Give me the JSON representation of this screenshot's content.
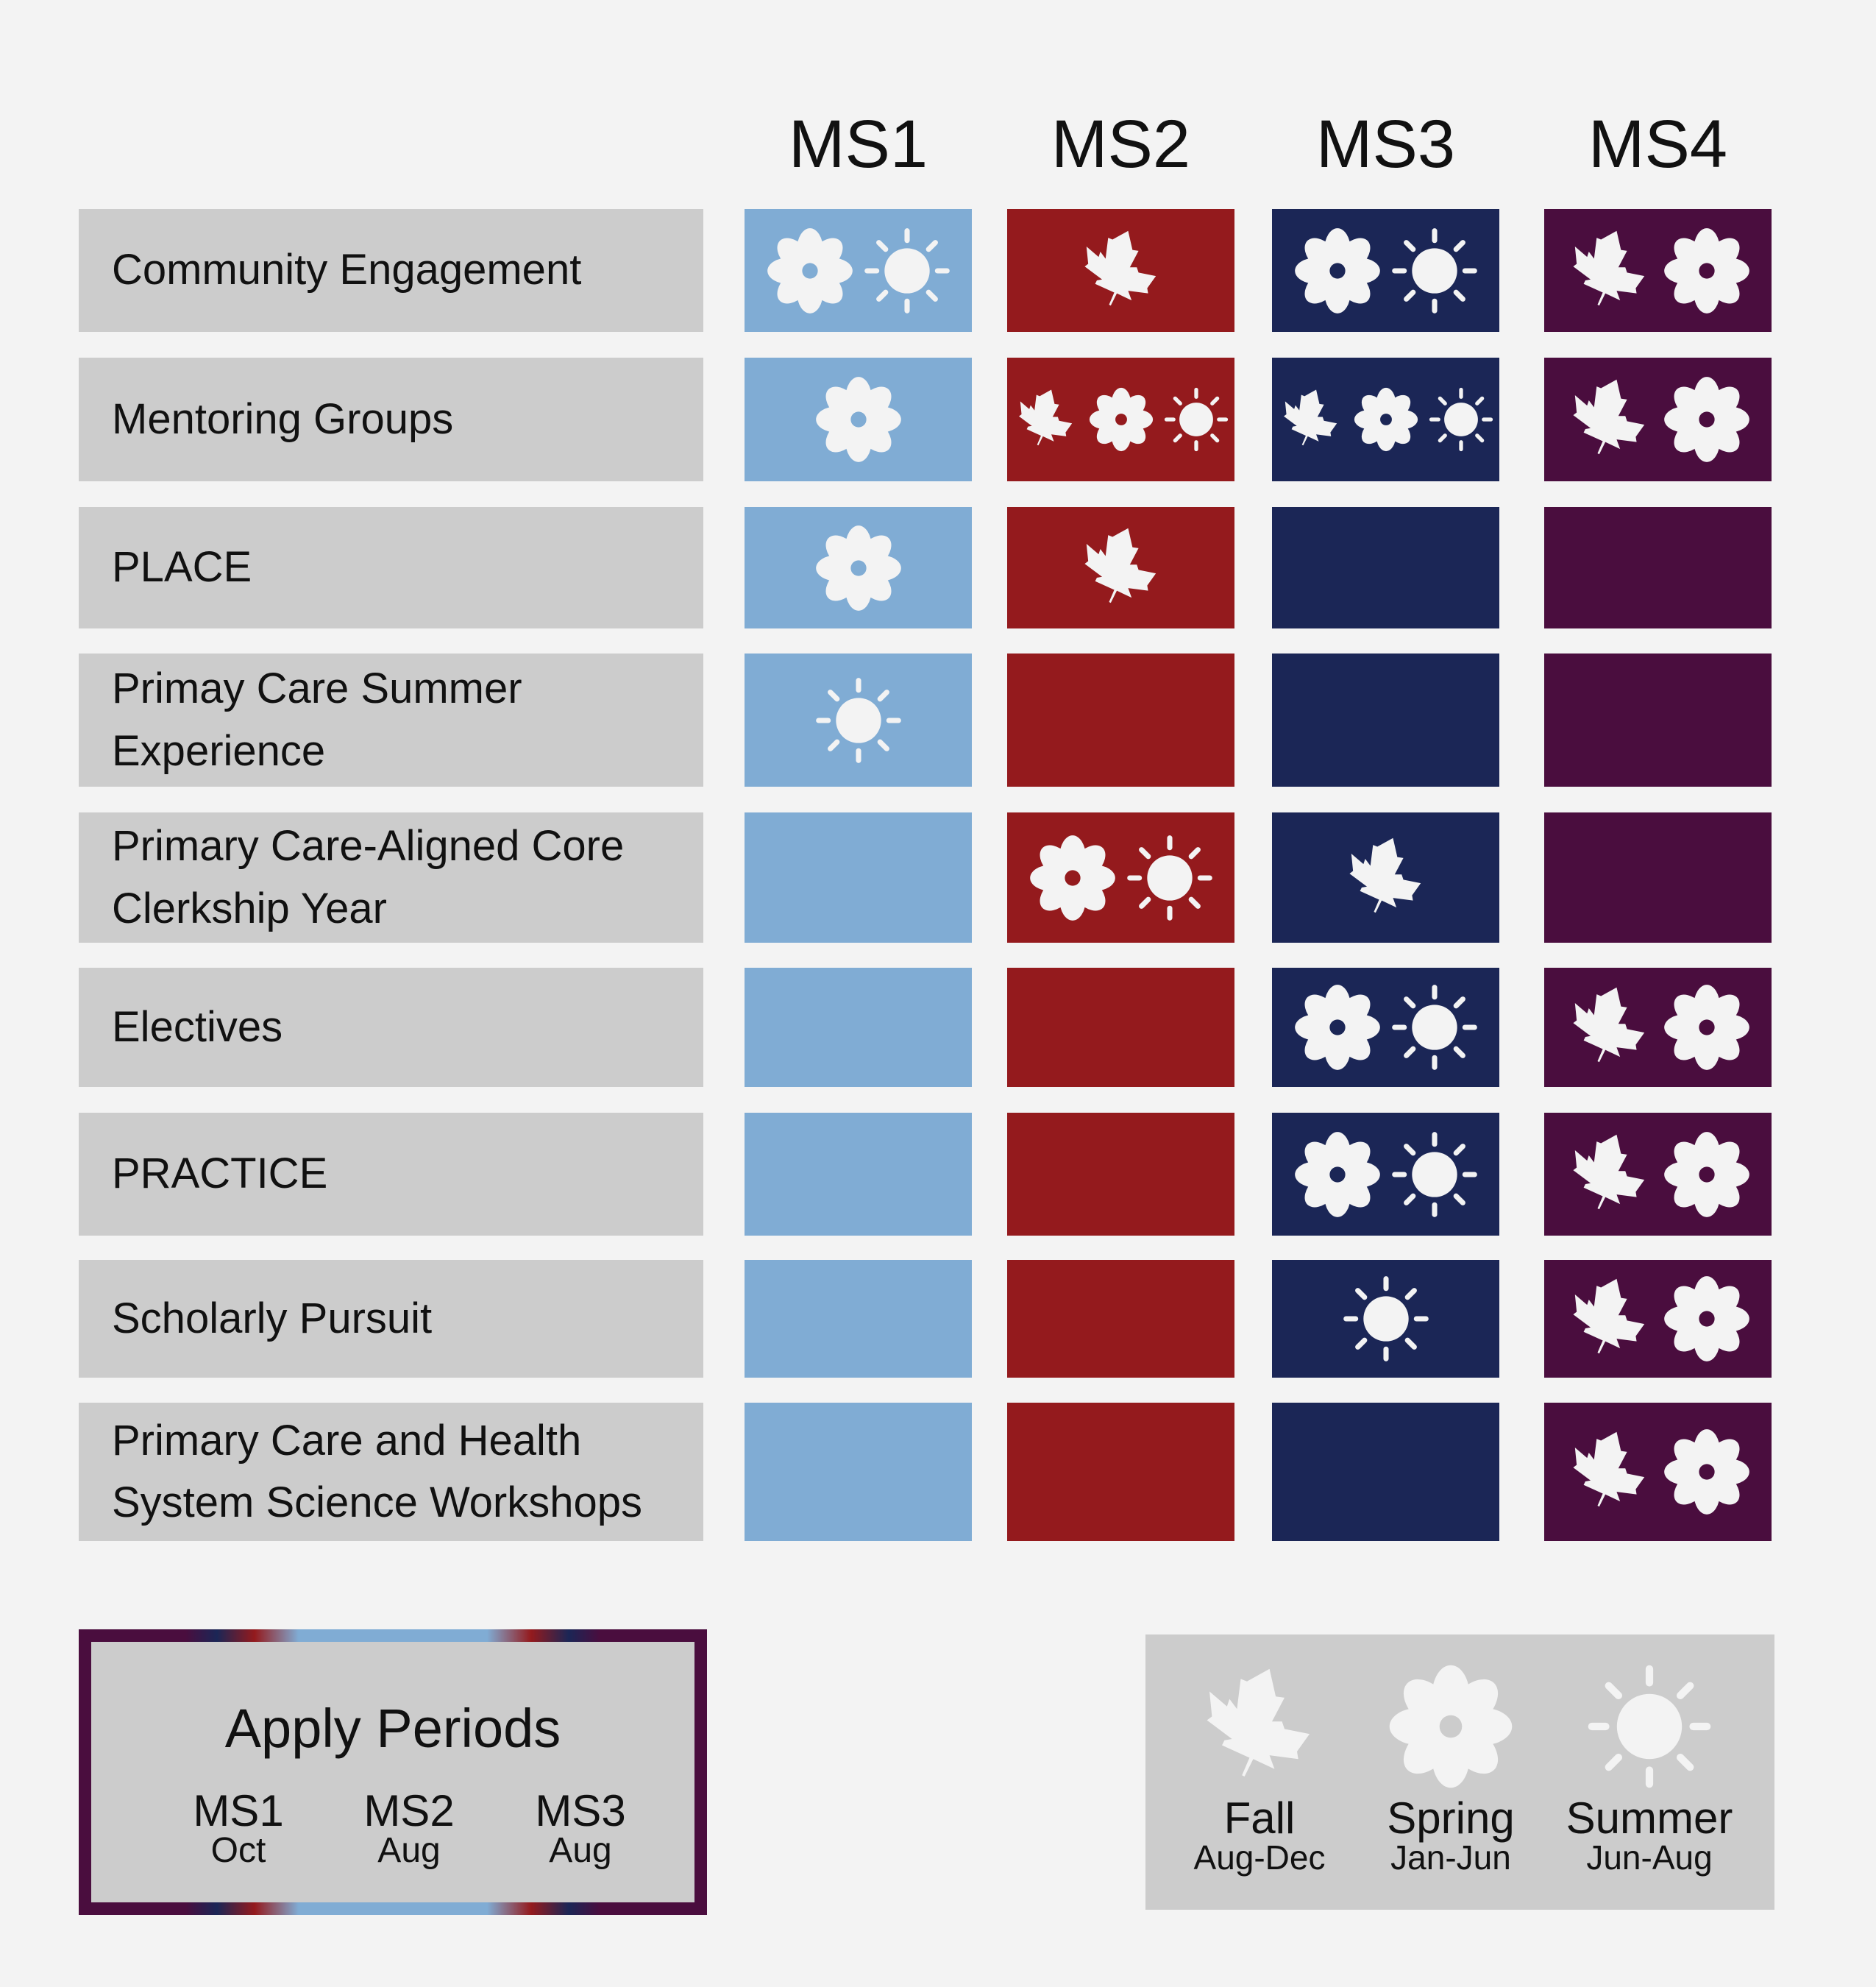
{
  "colors": {
    "ms1": "#80acd4",
    "ms2": "#941a1d",
    "ms3": "#1b2656",
    "ms4": "#4a0d3e",
    "label_bg": "#cccccc",
    "icon": "#f3f3f3"
  },
  "columns": [
    "MS1",
    "MS2",
    "MS3",
    "MS4"
  ],
  "rows": [
    {
      "label": "Community Engagement",
      "cells": [
        [
          "spring",
          "summer"
        ],
        [
          "fall"
        ],
        [
          "spring",
          "summer"
        ],
        [
          "fall",
          "spring"
        ]
      ]
    },
    {
      "label": "Mentoring Groups",
      "cells": [
        [
          "spring"
        ],
        [
          "fall",
          "spring",
          "summer"
        ],
        [
          "fall",
          "spring",
          "summer"
        ],
        [
          "fall",
          "spring"
        ]
      ]
    },
    {
      "label": "PLACE",
      "cells": [
        [
          "spring"
        ],
        [
          "fall"
        ],
        [],
        []
      ]
    },
    {
      "label": "Primay Care Summer Experience",
      "cells": [
        [
          "summer"
        ],
        [],
        [],
        []
      ]
    },
    {
      "label": "Primary Care-Aligned Core Clerkship Year",
      "cells": [
        [],
        [
          "spring",
          "summer"
        ],
        [
          "fall"
        ],
        []
      ]
    },
    {
      "label": "Electives",
      "cells": [
        [],
        [],
        [
          "spring",
          "summer"
        ],
        [
          "fall",
          "spring"
        ]
      ]
    },
    {
      "label": "PRACTICE",
      "cells": [
        [],
        [],
        [
          "spring",
          "summer"
        ],
        [
          "fall",
          "spring"
        ]
      ]
    },
    {
      "label": "Scholarly Pursuit",
      "cells": [
        [],
        [],
        [
          "summer"
        ],
        [
          "fall",
          "spring"
        ]
      ]
    },
    {
      "label": "Primary Care and Health System Science Workshops",
      "cells": [
        [],
        [],
        [],
        [
          "fall",
          "spring"
        ]
      ]
    }
  ],
  "apply_periods": {
    "title": "Apply Periods",
    "items": [
      {
        "name": "MS1",
        "month": "Oct"
      },
      {
        "name": "MS2",
        "month": "Aug"
      },
      {
        "name": "MS3",
        "month": "Aug"
      }
    ]
  },
  "legend": [
    {
      "icon": "fall",
      "name": "Fall",
      "months": "Aug-Dec"
    },
    {
      "icon": "spring",
      "name": "Spring",
      "months": "Jan-Jun"
    },
    {
      "icon": "summer",
      "name": "Summer",
      "months": "Jun-Aug"
    }
  ]
}
